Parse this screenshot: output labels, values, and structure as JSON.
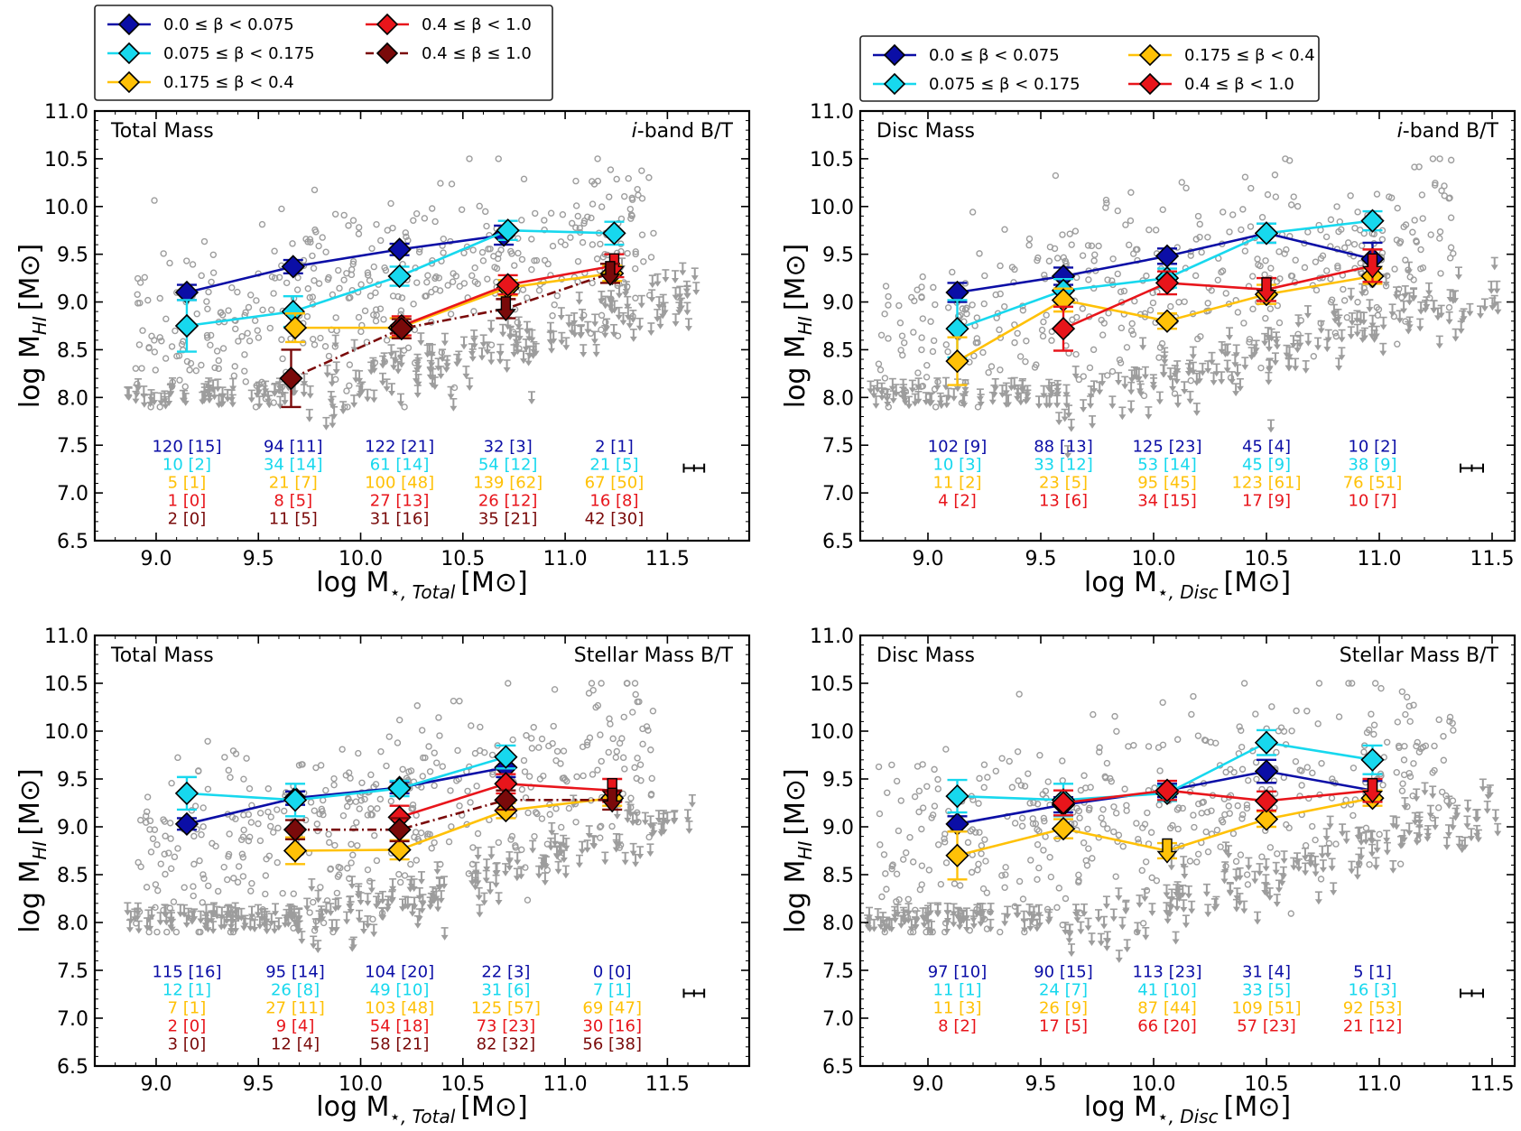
{
  "colors": {
    "b0": "#0b0ea6",
    "b1": "#17d8ee",
    "b2": "#ffc107",
    "b3": "#e8151b",
    "b4": "#7a0a0a",
    "galaxy": "#9d9d9d"
  },
  "legend_left": {
    "items": [
      {
        "key": "b0",
        "label": "0.0 ≤ β < 0.075",
        "dashed": false
      },
      {
        "key": "b3",
        "label": "0.4 ≤ β < 1.0",
        "dashed": false
      },
      {
        "key": "b1",
        "label": "0.075 ≤ β < 0.175",
        "dashed": false
      },
      {
        "key": "b4",
        "label": "0.4 ≤ β ≤ 1.0",
        "dashed": true
      },
      {
        "key": "b2",
        "label": "0.175 ≤ β < 0.4",
        "dashed": false
      }
    ]
  },
  "legend_right": {
    "items": [
      {
        "key": "b0",
        "label": "0.0 ≤ β < 0.075",
        "dashed": false
      },
      {
        "key": "b2",
        "label": "0.175 ≤ β < 0.4",
        "dashed": false
      },
      {
        "key": "b1",
        "label": "0.075 ≤ β < 0.175",
        "dashed": false
      },
      {
        "key": "b3",
        "label": "0.4 ≤ β < 1.0",
        "dashed": false
      }
    ]
  },
  "chart_data": [
    {
      "type": "scatter",
      "title_left": "Total Mass",
      "title_right_italic": "i",
      "title_right": "-band B/T",
      "xlabel_main": "log M",
      "xlabel_sub": "⋆, Total",
      "xlabel_unit": "[M⊙]",
      "ylabel_main": "log M",
      "ylabel_sub": "HI",
      "ylabel_unit": "[M⊙]",
      "xlim": [
        8.7,
        11.9
      ],
      "ylim": [
        6.5,
        11.0
      ],
      "xticks": [
        "9.0",
        "9.5",
        "10.0",
        "10.5",
        "11.0",
        "11.5"
      ],
      "yticks": [
        "6.5",
        "7.0",
        "7.5",
        "8.0",
        "8.5",
        "9.0",
        "9.5",
        "10.0",
        "10.5",
        "11.0"
      ],
      "series": [
        {
          "key": "b0",
          "x": [
            9.15,
            9.67,
            10.19,
            10.7
          ],
          "y": [
            9.1,
            9.37,
            9.55,
            9.7
          ],
          "err": [
            0.08,
            0.07,
            0.06,
            0.1
          ],
          "upper_limit": [
            false,
            false,
            false,
            false
          ]
        },
        {
          "key": "b1",
          "x": [
            9.15,
            9.67,
            10.19,
            10.72,
            11.24
          ],
          "y": [
            8.75,
            8.9,
            9.27,
            9.75,
            9.72
          ],
          "err": [
            0.27,
            0.16,
            0.1,
            0.1,
            0.12
          ],
          "upper_limit": [
            false,
            false,
            false,
            false,
            false
          ]
        },
        {
          "key": "b2",
          "x": [
            9.68,
            10.19,
            10.72,
            11.23
          ],
          "y": [
            8.73,
            8.73,
            9.15,
            9.3
          ],
          "err": [
            0.15,
            0.1,
            0.08,
            0.08
          ],
          "upper_limit": [
            false,
            false,
            false,
            false
          ]
        },
        {
          "key": "b3",
          "x": [
            10.2,
            10.72,
            11.24
          ],
          "y": [
            8.75,
            9.18,
            9.38
          ],
          "err": [
            0.1,
            0.1,
            0.12
          ],
          "upper_limit": [
            false,
            false,
            true
          ]
        },
        {
          "key": "b4",
          "x": [
            9.66,
            10.2,
            10.71,
            11.22
          ],
          "y": [
            8.2,
            8.72,
            8.93,
            9.3
          ],
          "err": [
            0.3,
            0.1,
            0.1,
            0.1
          ],
          "upper_limit": [
            false,
            false,
            true,
            true
          ],
          "dashed": true
        }
      ],
      "counts": {
        "b0": [
          "120 [15]",
          "94 [11]",
          "122 [21]",
          "32 [3]",
          "2 [1]"
        ],
        "b1": [
          "10 [2]",
          "34 [14]",
          "61 [14]",
          "54 [12]",
          "21 [5]"
        ],
        "b2": [
          "5 [1]",
          "21 [7]",
          "100 [48]",
          "139 [62]",
          "67 [50]"
        ],
        "b3": [
          "1 [0]",
          "8 [5]",
          "27 [13]",
          "26 [12]",
          "16 [8]"
        ],
        "b4": [
          "2 [0]",
          "11 [5]",
          "31 [16]",
          "35 [21]",
          "42 [30]"
        ]
      },
      "count_x": [
        9.15,
        9.67,
        10.19,
        10.72,
        11.24
      ],
      "typical_error": {
        "x": 11.63,
        "y": 7.26,
        "xerr": 0.05,
        "yerr": 0.04
      }
    },
    {
      "type": "scatter",
      "title_left": "Disc Mass",
      "title_right_italic": "i",
      "title_right": "-band B/T",
      "xlabel_main": "log M",
      "xlabel_sub": "⋆, Disc",
      "xlabel_unit": "[M⊙]",
      "ylabel_main": "log M",
      "ylabel_sub": "HI",
      "ylabel_unit": "[M⊙]",
      "xlim": [
        8.7,
        11.6
      ],
      "ylim": [
        6.5,
        11.0
      ],
      "xticks": [
        "9.0",
        "9.5",
        "10.0",
        "10.5",
        "11.0",
        "11.5"
      ],
      "yticks": [
        "6.5",
        "7.0",
        "7.5",
        "8.0",
        "8.5",
        "9.0",
        "9.5",
        "10.0",
        "10.5",
        "11.0"
      ],
      "series": [
        {
          "key": "b0",
          "x": [
            9.13,
            9.6,
            10.06,
            10.5,
            10.97
          ],
          "y": [
            9.1,
            9.27,
            9.48,
            9.72,
            9.45
          ],
          "err": [
            0.1,
            0.09,
            0.08,
            0.1,
            0.17
          ],
          "upper_limit": [
            false,
            false,
            false,
            false,
            false
          ]
        },
        {
          "key": "b1",
          "x": [
            9.13,
            9.6,
            10.06,
            10.5,
            10.97
          ],
          "y": [
            8.72,
            9.12,
            9.25,
            9.72,
            9.85
          ],
          "err": [
            0.3,
            0.12,
            0.1,
            0.1,
            0.1
          ],
          "upper_limit": [
            false,
            false,
            false,
            false,
            false
          ]
        },
        {
          "key": "b2",
          "x": [
            9.13,
            9.6,
            10.06,
            10.5,
            10.97
          ],
          "y": [
            8.38,
            9.02,
            8.8,
            9.08,
            9.27
          ],
          "err": [
            0.25,
            0.12,
            0.08,
            0.1,
            0.08
          ],
          "upper_limit": [
            false,
            false,
            false,
            false,
            false
          ]
        },
        {
          "key": "b3",
          "x": [
            9.6,
            10.06,
            10.5,
            10.97
          ],
          "y": [
            8.72,
            9.2,
            9.13,
            9.38
          ],
          "err": [
            0.23,
            0.12,
            0.12,
            0.17
          ],
          "upper_limit": [
            false,
            false,
            true,
            true
          ]
        }
      ],
      "counts": {
        "b0": [
          "102 [9]",
          "88 [13]",
          "125 [23]",
          "45 [4]",
          "10 [2]"
        ],
        "b1": [
          "10 [3]",
          "33 [12]",
          "53 [14]",
          "45 [9]",
          "38 [9]"
        ],
        "b2": [
          "11 [2]",
          "23 [5]",
          "95 [45]",
          "123 [61]",
          "76 [51]"
        ],
        "b3": [
          "4 [2]",
          "13 [6]",
          "34 [15]",
          "17 [9]",
          "10 [7]"
        ]
      },
      "count_x": [
        9.13,
        9.6,
        10.06,
        10.5,
        10.97
      ],
      "typical_error": {
        "x": 11.41,
        "y": 7.26,
        "xerr": 0.05,
        "yerr": 0.04
      }
    },
    {
      "type": "scatter",
      "title_left": "Total Mass",
      "title_right_italic": "",
      "title_right": "Stellar Mass B/T",
      "xlabel_main": "log M",
      "xlabel_sub": "⋆, Total",
      "xlabel_unit": "[M⊙]",
      "ylabel_main": "log M",
      "ylabel_sub": "HI",
      "ylabel_unit": "[M⊙]",
      "xlim": [
        8.7,
        11.9
      ],
      "ylim": [
        6.5,
        11.0
      ],
      "xticks": [
        "9.0",
        "9.5",
        "10.0",
        "10.5",
        "11.0",
        "11.5"
      ],
      "yticks": [
        "6.5",
        "7.0",
        "7.5",
        "8.0",
        "8.5",
        "9.0",
        "9.5",
        "10.0",
        "10.5",
        "11.0"
      ],
      "series": [
        {
          "key": "b0",
          "x": [
            9.15,
            9.68,
            10.19,
            10.71
          ],
          "y": [
            9.03,
            9.3,
            9.41,
            9.62
          ],
          "err": [
            0.06,
            0.07,
            0.06,
            0.1
          ],
          "upper_limit": [
            false,
            false,
            false,
            false
          ]
        },
        {
          "key": "b1",
          "x": [
            9.15,
            9.68,
            10.19,
            10.71
          ],
          "y": [
            9.35,
            9.28,
            9.4,
            9.73
          ],
          "err": [
            0.17,
            0.17,
            0.08,
            0.12
          ],
          "upper_limit": [
            false,
            false,
            false,
            false
          ]
        },
        {
          "key": "b2",
          "x": [
            9.68,
            10.19,
            10.71,
            11.23
          ],
          "y": [
            8.75,
            8.76,
            9.17,
            9.3
          ],
          "err": [
            0.14,
            0.1,
            0.08,
            0.08
          ],
          "upper_limit": [
            false,
            false,
            false,
            false
          ]
        },
        {
          "key": "b3",
          "x": [
            10.19,
            10.71,
            11.23
          ],
          "y": [
            9.1,
            9.45,
            9.38
          ],
          "err": [
            0.12,
            0.1,
            0.12
          ],
          "upper_limit": [
            false,
            false,
            true
          ]
        },
        {
          "key": "b4",
          "x": [
            9.68,
            10.19,
            10.71,
            11.23
          ],
          "y": [
            8.97,
            8.97,
            9.28,
            9.28
          ],
          "err": [
            0.1,
            0.12,
            0.1,
            0.1
          ],
          "upper_limit": [
            false,
            false,
            false,
            true
          ],
          "dashed": true
        }
      ],
      "counts": {
        "b0": [
          "115 [16]",
          "95 [14]",
          "104 [20]",
          "22 [3]",
          "0 [0]"
        ],
        "b1": [
          "12 [1]",
          "26 [8]",
          "49 [10]",
          "31 [6]",
          "7 [1]"
        ],
        "b2": [
          "7 [1]",
          "27 [11]",
          "103 [48]",
          "125 [57]",
          "69 [47]"
        ],
        "b3": [
          "2 [0]",
          "9 [4]",
          "54 [18]",
          "73 [23]",
          "30 [16]"
        ],
        "b4": [
          "3 [0]",
          "12 [4]",
          "58 [21]",
          "82 [32]",
          "56 [38]"
        ]
      },
      "count_x": [
        9.15,
        9.68,
        10.19,
        10.71,
        11.23
      ],
      "typical_error": {
        "x": 11.63,
        "y": 7.26,
        "xerr": 0.05,
        "yerr": 0.04
      }
    },
    {
      "type": "scatter",
      "title_left": "Disc Mass",
      "title_right_italic": "",
      "title_right": "Stellar Mass B/T",
      "xlabel_main": "log M",
      "xlabel_sub": "⋆, Disc",
      "xlabel_unit": "[M⊙]",
      "ylabel_main": "log M",
      "ylabel_sub": "HI",
      "ylabel_unit": "[M⊙]",
      "xlim": [
        8.7,
        11.6
      ],
      "ylim": [
        6.5,
        11.0
      ],
      "xticks": [
        "9.0",
        "9.5",
        "10.0",
        "10.5",
        "11.0",
        "11.5"
      ],
      "yticks": [
        "6.5",
        "7.0",
        "7.5",
        "8.0",
        "8.5",
        "9.0",
        "9.5",
        "10.0",
        "10.5",
        "11.0"
      ],
      "series": [
        {
          "key": "b0",
          "x": [
            9.13,
            9.6,
            10.06,
            10.5,
            10.97
          ],
          "y": [
            9.03,
            9.23,
            9.38,
            9.58,
            9.38
          ],
          "err": [
            0.08,
            0.08,
            0.07,
            0.12,
            0.1
          ],
          "upper_limit": [
            false,
            false,
            false,
            false,
            true
          ]
        },
        {
          "key": "b1",
          "x": [
            9.13,
            9.6,
            10.06,
            10.5,
            10.97
          ],
          "y": [
            9.32,
            9.28,
            9.35,
            9.88,
            9.7
          ],
          "err": [
            0.17,
            0.17,
            0.08,
            0.13,
            0.15
          ],
          "upper_limit": [
            false,
            false,
            false,
            false,
            false
          ]
        },
        {
          "key": "b2",
          "x": [
            9.13,
            9.6,
            10.06,
            10.5,
            10.97
          ],
          "y": [
            8.7,
            8.98,
            8.75,
            9.08,
            9.3
          ],
          "err": [
            0.25,
            0.1,
            0.08,
            0.08,
            0.08
          ],
          "upper_limit": [
            false,
            false,
            true,
            false,
            false
          ]
        },
        {
          "key": "b3",
          "x": [
            9.6,
            10.06,
            10.5,
            10.97
          ],
          "y": [
            9.25,
            9.38,
            9.27,
            9.38
          ],
          "err": [
            0.13,
            0.1,
            0.1,
            0.12
          ],
          "upper_limit": [
            false,
            false,
            false,
            true
          ]
        }
      ],
      "counts": {
        "b0": [
          "97 [10]",
          "90 [15]",
          "113 [23]",
          "31 [4]",
          "5 [1]"
        ],
        "b1": [
          "11 [1]",
          "24 [7]",
          "41 [10]",
          "33 [5]",
          "16 [3]"
        ],
        "b2": [
          "11 [3]",
          "26 [9]",
          "87 [44]",
          "109 [51]",
          "92 [53]"
        ],
        "b3": [
          "8 [2]",
          "17 [5]",
          "66 [20]",
          "57 [23]",
          "21 [12]"
        ]
      },
      "count_x": [
        9.13,
        9.6,
        10.06,
        10.5,
        10.97
      ],
      "typical_error": {
        "x": 11.41,
        "y": 7.26,
        "xerr": 0.05,
        "yerr": 0.04
      }
    }
  ]
}
